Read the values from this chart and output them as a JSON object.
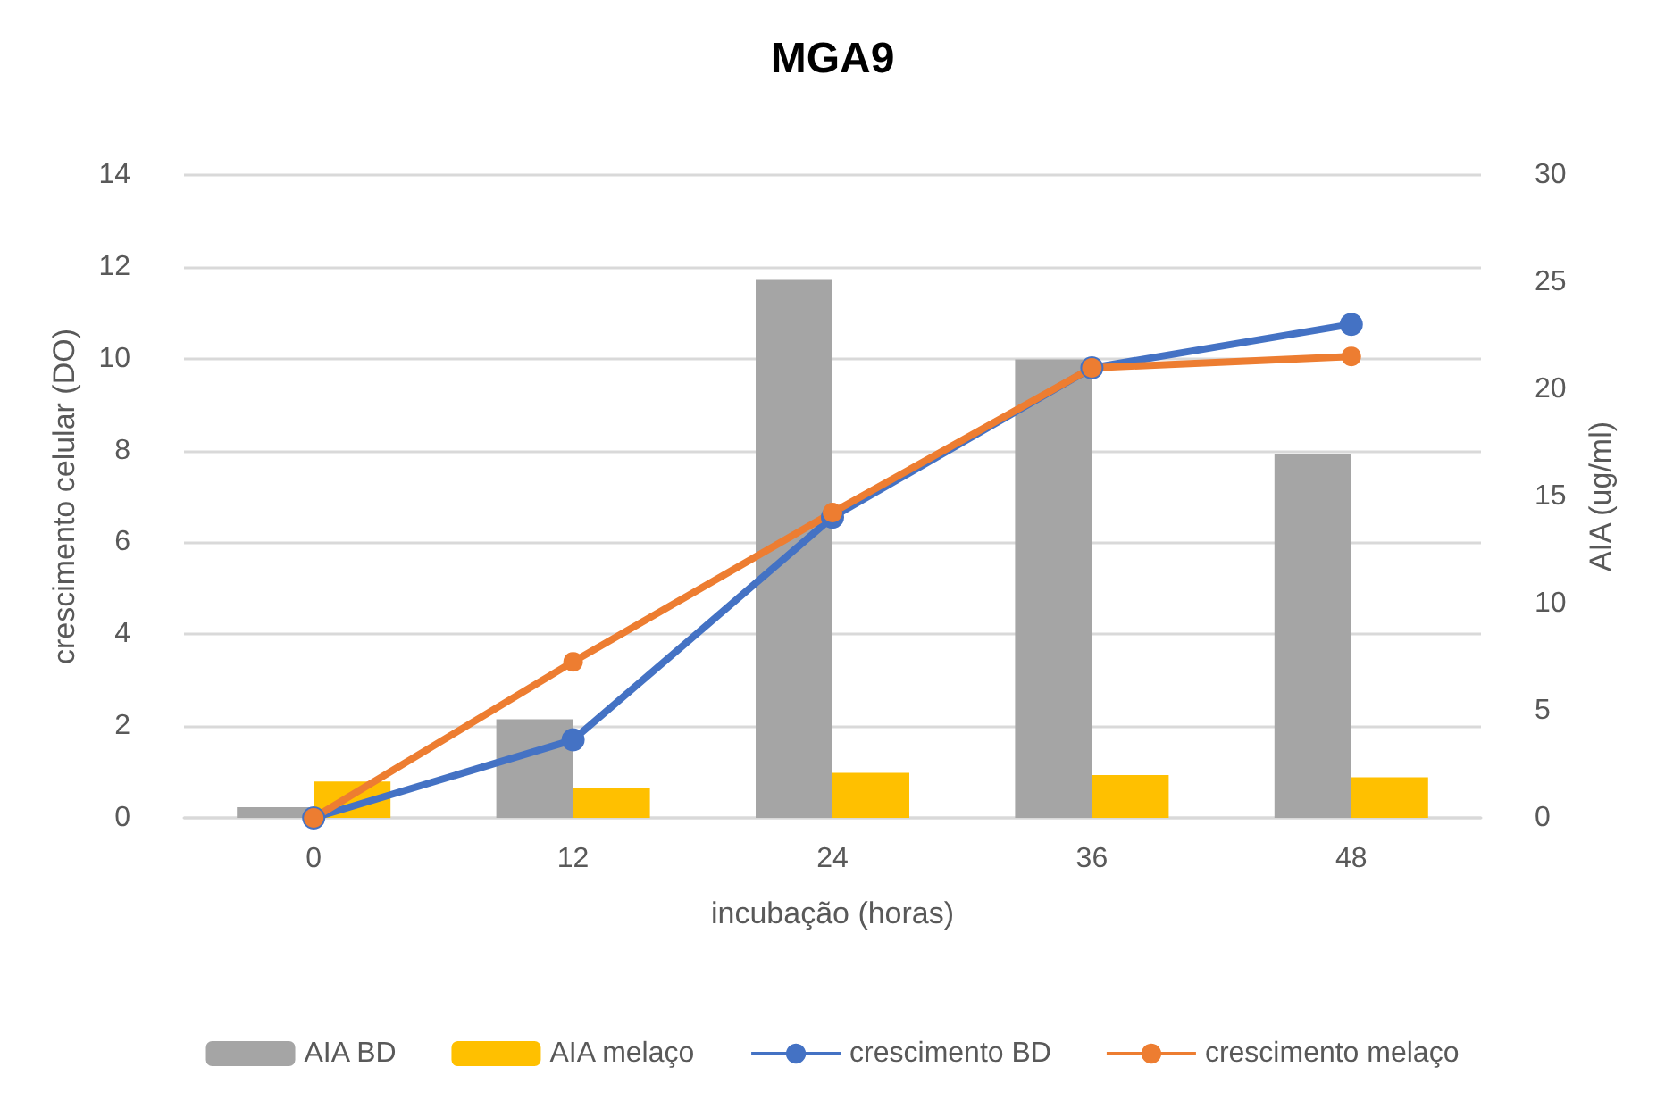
{
  "chart_data": {
    "type": "bar",
    "title": "MGA9",
    "xlabel": "incubação (horas)",
    "ylabel": "crescimento celular (DO)",
    "y2label": "AIA (ug/ml)",
    "categories": [
      "0",
      "12",
      "24",
      "36",
      "48"
    ],
    "series": [
      {
        "name": "AIA BD",
        "axis": "y2",
        "color": "#a5a5a5",
        "values": [
          0.5,
          4.6,
          25.1,
          21.4,
          17.0
        ]
      },
      {
        "name": "AIA melaço",
        "axis": "y2",
        "color": "#ffc000",
        "values": [
          1.7,
          1.4,
          2.1,
          2.0,
          1.9
        ]
      },
      {
        "name": "crescimento BD",
        "type": "line",
        "color": "#4472c4",
        "values": [
          0,
          1.7,
          6.55,
          9.8,
          10.75
        ]
      },
      {
        "name": "crescimento melaço",
        "type": "line",
        "color": "#ed7d31",
        "values": [
          0,
          3.4,
          6.65,
          9.8,
          10.05
        ]
      }
    ],
    "ylim": [
      0,
      14
    ],
    "yticks": [
      0,
      2,
      4,
      6,
      8,
      10,
      12,
      14
    ],
    "y2lim": [
      0,
      30
    ],
    "y2ticks": [
      0,
      5,
      10,
      15,
      20,
      25,
      30
    ],
    "grid": "y",
    "legend": "bottom",
    "marker": "circle",
    "line_style": "solid"
  }
}
